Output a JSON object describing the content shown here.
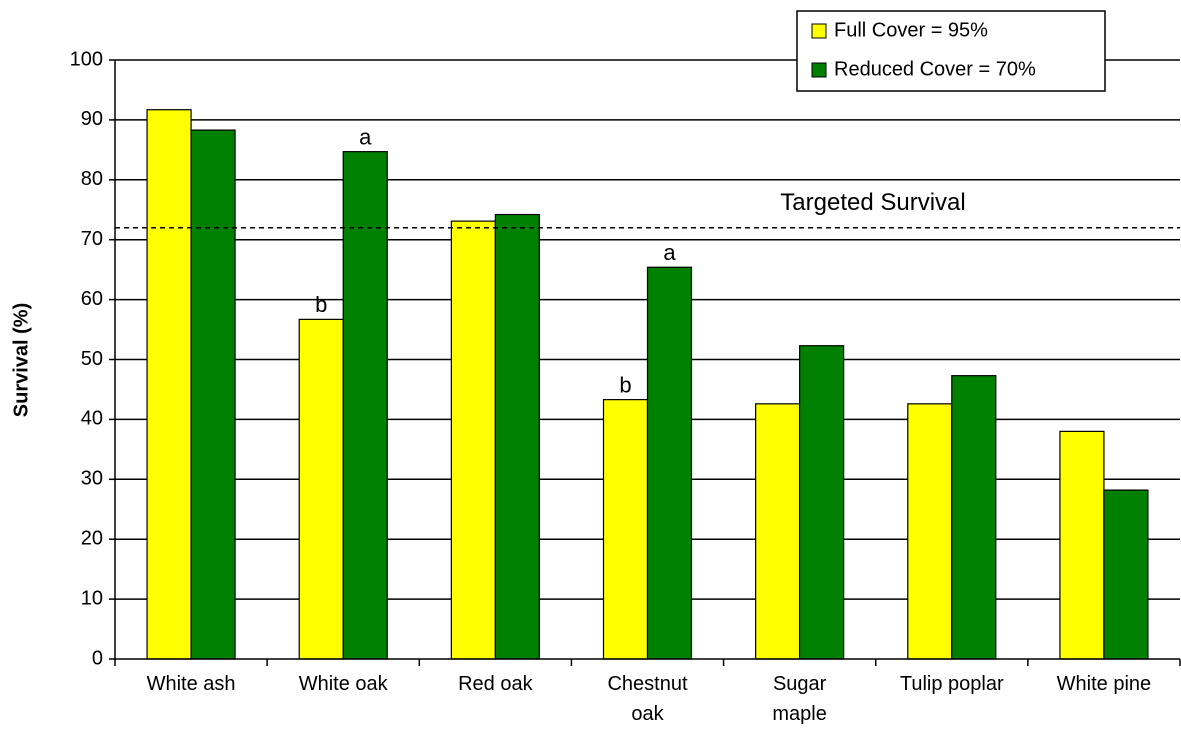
{
  "chart_data": {
    "type": "bar",
    "categories": [
      "White ash",
      "White oak",
      "Red oak",
      "Chestnut\noak",
      "Sugar\nmaple",
      "Tulip poplar",
      "White pine"
    ],
    "series": [
      {
        "name": "Full Cover = 95%",
        "color": "#ffff00",
        "values": [
          91.7,
          56.7,
          73.1,
          43.3,
          42.6,
          42.6,
          38.0
        ]
      },
      {
        "name": "Reduced Cover = 70%",
        "color": "#008000",
        "values": [
          88.3,
          84.7,
          74.2,
          65.4,
          52.3,
          47.3,
          28.2
        ]
      }
    ],
    "y_axis_label": "Survival (%)",
    "ylim": [
      0,
      100
    ],
    "yticks": [
      0,
      10,
      20,
      30,
      40,
      50,
      60,
      70,
      80,
      90,
      100
    ],
    "grid": true,
    "reference_line": {
      "value": 72,
      "label": "Targeted Survival"
    },
    "annotations": [
      {
        "text": "b",
        "category": 1,
        "series": 0
      },
      {
        "text": "a",
        "category": 1,
        "series": 1
      },
      {
        "text": "b",
        "category": 3,
        "series": 0
      },
      {
        "text": "a",
        "category": 3,
        "series": 1
      }
    ],
    "legend": "top-right"
  }
}
